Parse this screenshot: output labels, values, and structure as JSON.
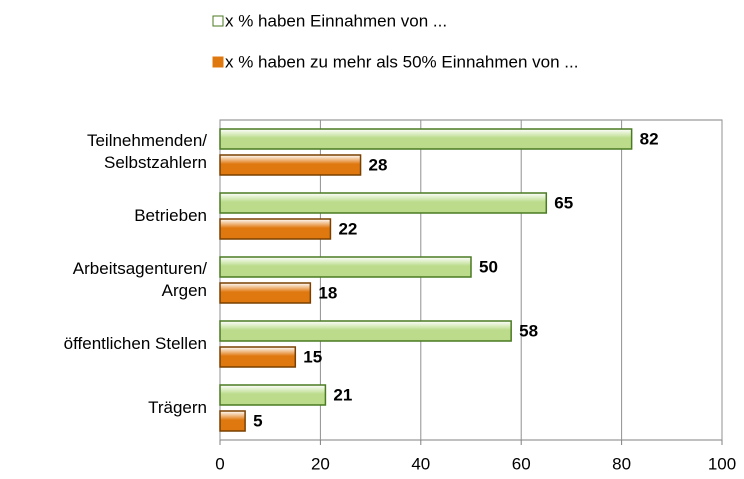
{
  "chart_data": {
    "type": "bar",
    "orientation": "horizontal",
    "categories": [
      "Teilnehmenden/\nSelbstzahlern",
      "Betrieben",
      "Arbeitsagenturen/\nArgen",
      "öffentlichen Stellen",
      "Trägern"
    ],
    "series": [
      {
        "name": "x % haben Einnahmen von ...",
        "color": "#bcdc8c",
        "border": "#4a7a22",
        "values": [
          82,
          65,
          50,
          58,
          21
        ]
      },
      {
        "name": "x % haben zu mehr als 50% Einnahmen von ...",
        "color": "#e07810",
        "border": "#7a4000",
        "values": [
          28,
          22,
          18,
          15,
          5
        ]
      }
    ],
    "xlim": [
      0,
      100
    ],
    "xticks": [
      0,
      20,
      40,
      60,
      80,
      100
    ],
    "grid": true,
    "legend": "top"
  }
}
